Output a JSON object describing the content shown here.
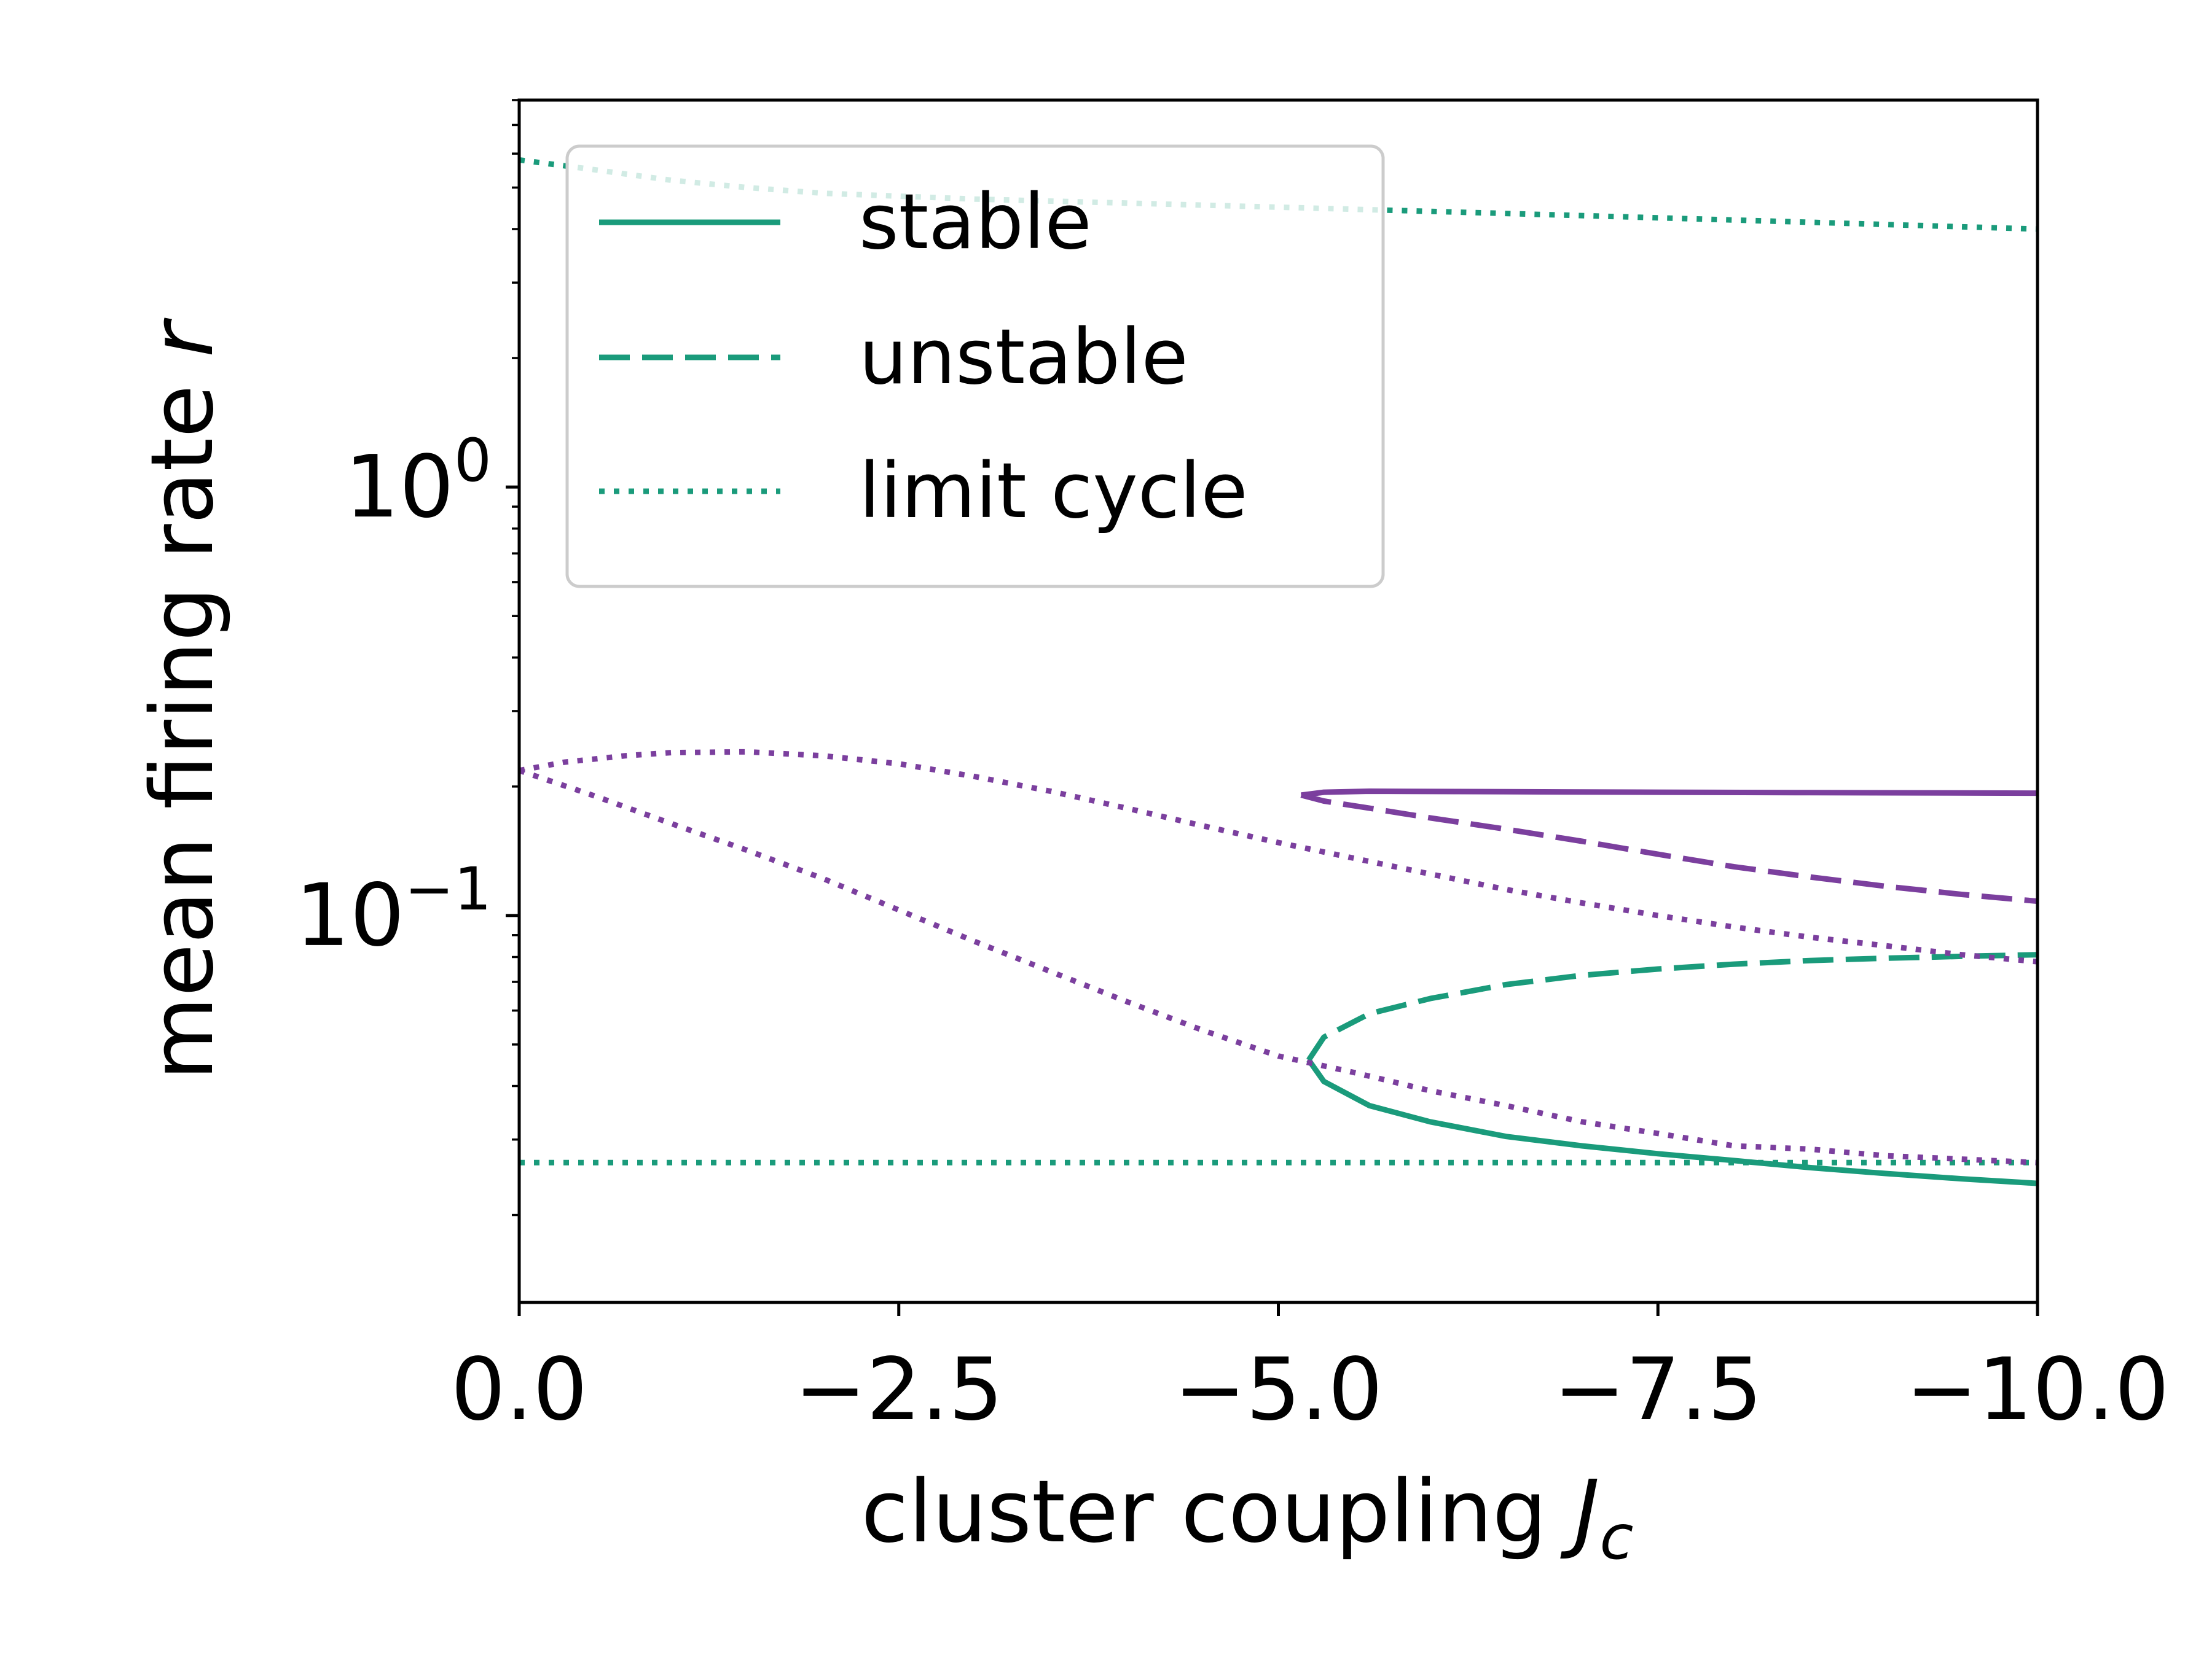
{
  "chart_data": {
    "type": "line",
    "title": "",
    "xlabel": "cluster coupling",
    "xlabel_symbol": "J",
    "xlabel_subscript": "c",
    "ylabel": "mean firing rate",
    "ylabel_symbol": "r",
    "xlim": [
      0.0,
      -10.0
    ],
    "ylim": [
      0.0125,
      8.0
    ],
    "yscale": "log",
    "grid": false,
    "x_ticks": [
      "0.0",
      "−2.5",
      "−5.0",
      "−7.5",
      "−10.0"
    ],
    "x_tick_values": [
      0.0,
      -2.5,
      -5.0,
      -7.5,
      -10.0
    ],
    "y_ticks": [
      {
        "base": "10",
        "exponent": "0",
        "value": 1.0
      },
      {
        "base": "10",
        "exponent": "−1",
        "value": 0.1
      }
    ],
    "legend": {
      "location": "upper-left",
      "entries": [
        {
          "label": "stable",
          "style": "solid",
          "color": "#1a9b7b"
        },
        {
          "label": "unstable",
          "style": "dashed",
          "color": "#1a9b7b"
        },
        {
          "label": "limit cycle",
          "style": "dotted",
          "color": "#1a9b7b"
        }
      ]
    },
    "colors": {
      "green": "#1a9b7b",
      "purple": "#7b3f9e"
    },
    "series": [
      {
        "color": "green",
        "style": "dotted",
        "points": [
          [
            0.0,
            5.8
          ],
          [
            -0.5,
            5.5
          ],
          [
            -1.0,
            5.2
          ],
          [
            -1.5,
            5.0
          ],
          [
            -2.0,
            4.85
          ],
          [
            -3.0,
            4.7
          ],
          [
            -4.0,
            4.6
          ],
          [
            -5.0,
            4.5
          ],
          [
            -6.0,
            4.4
          ],
          [
            -7.0,
            4.3
          ],
          [
            -8.0,
            4.2
          ],
          [
            -9.0,
            4.1
          ],
          [
            -10.0,
            4.0
          ]
        ]
      },
      {
        "color": "green",
        "style": "dotted",
        "points": [
          [
            0.0,
            0.0265
          ],
          [
            -10.0,
            0.0265
          ]
        ]
      },
      {
        "color": "green",
        "style": "solid",
        "points": [
          [
            -5.2,
            0.046
          ],
          [
            -5.3,
            0.041
          ],
          [
            -5.6,
            0.036
          ],
          [
            -6.0,
            0.033
          ],
          [
            -6.5,
            0.0305
          ],
          [
            -7.0,
            0.029
          ],
          [
            -7.5,
            0.0278
          ],
          [
            -8.0,
            0.0268
          ],
          [
            -8.5,
            0.0258
          ],
          [
            -9.0,
            0.025
          ],
          [
            -9.5,
            0.0243
          ],
          [
            -10.0,
            0.0237
          ]
        ]
      },
      {
        "color": "green",
        "style": "dashed",
        "points": [
          [
            -5.2,
            0.046
          ],
          [
            -5.3,
            0.052
          ],
          [
            -5.6,
            0.059
          ],
          [
            -6.0,
            0.064
          ],
          [
            -6.5,
            0.069
          ],
          [
            -7.0,
            0.0725
          ],
          [
            -7.5,
            0.075
          ],
          [
            -8.0,
            0.077
          ],
          [
            -8.5,
            0.0785
          ],
          [
            -9.0,
            0.0795
          ],
          [
            -9.5,
            0.0803
          ],
          [
            -10.0,
            0.081
          ]
        ]
      },
      {
        "color": "purple",
        "style": "solid",
        "points": [
          [
            -5.15,
            0.191
          ],
          [
            -5.3,
            0.194
          ],
          [
            -5.6,
            0.195
          ],
          [
            -6.5,
            0.1945
          ],
          [
            -7.5,
            0.194
          ],
          [
            -8.5,
            0.1935
          ],
          [
            -10.0,
            0.193
          ]
        ]
      },
      {
        "color": "purple",
        "style": "dashed",
        "points": [
          [
            -5.15,
            0.191
          ],
          [
            -5.3,
            0.185
          ],
          [
            -5.6,
            0.178
          ],
          [
            -6.0,
            0.169
          ],
          [
            -6.5,
            0.159
          ],
          [
            -7.0,
            0.149
          ],
          [
            -7.5,
            0.139
          ],
          [
            -8.0,
            0.13
          ],
          [
            -8.5,
            0.123
          ],
          [
            -9.0,
            0.117
          ],
          [
            -9.5,
            0.112
          ],
          [
            -10.0,
            0.108
          ]
        ]
      },
      {
        "color": "purple",
        "style": "dotted",
        "points": [
          [
            0.0,
            0.218
          ],
          [
            -0.3,
            0.228
          ],
          [
            -0.7,
            0.236
          ],
          [
            -1.0,
            0.24
          ],
          [
            -1.5,
            0.241
          ],
          [
            -2.0,
            0.236
          ],
          [
            -2.5,
            0.226
          ],
          [
            -3.0,
            0.211
          ],
          [
            -3.5,
            0.195
          ],
          [
            -4.0,
            0.178
          ],
          [
            -4.5,
            0.162
          ],
          [
            -5.0,
            0.148
          ],
          [
            -5.5,
            0.136
          ],
          [
            -6.0,
            0.125
          ],
          [
            -6.5,
            0.115
          ],
          [
            -7.0,
            0.107
          ],
          [
            -7.5,
            0.1
          ],
          [
            -8.0,
            0.094
          ],
          [
            -8.5,
            0.089
          ],
          [
            -9.0,
            0.085
          ],
          [
            -9.5,
            0.081
          ],
          [
            -10.0,
            0.078
          ]
        ]
      },
      {
        "color": "purple",
        "style": "dotted",
        "points": [
          [
            0.0,
            0.218
          ],
          [
            -0.5,
            0.19
          ],
          [
            -1.0,
            0.164
          ],
          [
            -1.5,
            0.142
          ],
          [
            -2.0,
            0.122
          ],
          [
            -2.5,
            0.103
          ],
          [
            -3.0,
            0.087
          ],
          [
            -3.5,
            0.074
          ],
          [
            -4.0,
            0.063
          ],
          [
            -4.5,
            0.054
          ],
          [
            -5.0,
            0.047
          ],
          [
            -5.5,
            0.043
          ],
          [
            -6.0,
            0.039
          ],
          [
            -6.5,
            0.036
          ],
          [
            -7.0,
            0.033
          ],
          [
            -7.5,
            0.031
          ],
          [
            -8.0,
            0.029
          ],
          [
            -8.5,
            0.0285
          ],
          [
            -9.0,
            0.0275
          ],
          [
            -9.5,
            0.027
          ],
          [
            -10.0,
            0.0265
          ]
        ]
      }
    ]
  }
}
